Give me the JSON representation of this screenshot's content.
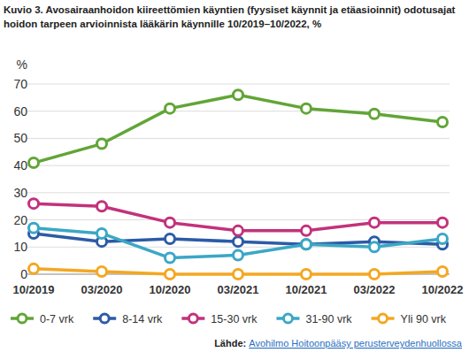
{
  "chart_data": {
    "type": "line",
    "title": "Kuvio 3. Avosairaanhoidon kiireettömien käyntien (fyysiset käynnit ja etäasioinnit) odotusajat hoidon tarpeen arvioinnista lääkärin käynnille 10/2019–10/2022, %",
    "y_label": "%",
    "categories": [
      "10/2019",
      "03/2020",
      "10/2020",
      "03/2021",
      "10/2021",
      "03/2022",
      "10/2022"
    ],
    "series": [
      {
        "name": "0-7 vrk",
        "color": "#62a537",
        "values": [
          41,
          48,
          61,
          66,
          61,
          59,
          56
        ]
      },
      {
        "name": "8-14 vrk",
        "color": "#2c5ba6",
        "values": [
          15,
          12,
          13,
          12,
          11,
          12,
          11
        ]
      },
      {
        "name": "15-30 vrk",
        "color": "#c2327c",
        "values": [
          26,
          25,
          19,
          16,
          16,
          19,
          19
        ]
      },
      {
        "name": "31-90 vrk",
        "color": "#3ba7c6",
        "values": [
          17,
          15,
          6,
          7,
          11,
          10,
          13
        ]
      },
      {
        "name": "Yli 90 vrk",
        "color": "#f4a722",
        "values": [
          2,
          1,
          0,
          0,
          0,
          0,
          1
        ]
      }
    ],
    "ylim": [
      0,
      70
    ],
    "yticks": [
      0,
      10,
      20,
      30,
      40,
      50,
      60,
      70
    ],
    "grid": true,
    "legend": "bottom",
    "marker": "circle",
    "source_label": "Lähde:",
    "source": "Avohilmo Hoitoonpääsy perusterveydenhuollossa"
  }
}
